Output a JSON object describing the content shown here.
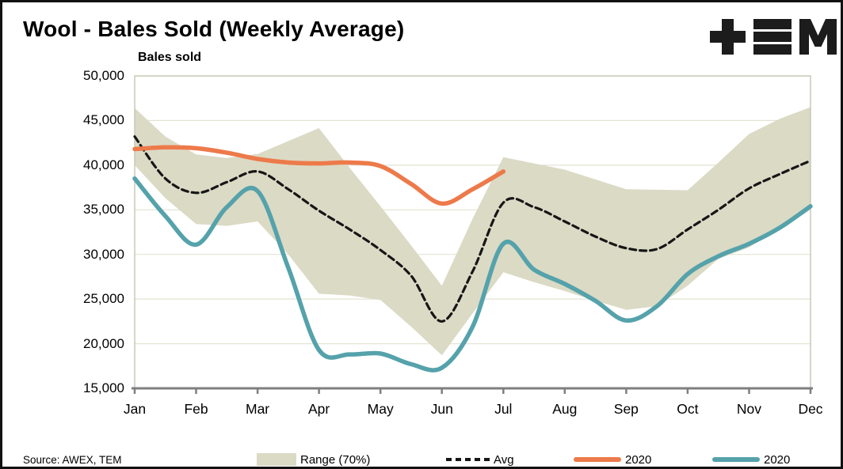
{
  "header": {
    "title": "Wool - Bales Sold (Weekly Average)"
  },
  "logo": {
    "name": "TEM logo",
    "glyph": "+≡M"
  },
  "source_note": "Source: AWEX, TEM",
  "colors": {
    "gridline": "#e3e3d3",
    "plot_border": "#c8c8b8",
    "axis_line": "#7f7f7f",
    "text": "#000000"
  },
  "chart_data": {
    "type": "line",
    "title": "Wool - Bales Sold (Weekly Average)",
    "y_axis_title": "Bales sold",
    "categories": [
      "Jan",
      "Feb",
      "Mar",
      "Apr",
      "May",
      "Jun",
      "Jul",
      "Aug",
      "Sep",
      "Oct",
      "Nov",
      "Dec"
    ],
    "y_ticks": [
      "50,000",
      "45,000",
      "40,000",
      "35,000",
      "30,000",
      "25,000",
      "20,000",
      "15,000"
    ],
    "y_tick_values": [
      50000,
      45000,
      40000,
      35000,
      30000,
      25000,
      20000,
      15000
    ],
    "ylim": [
      15000,
      50000
    ],
    "grid": true,
    "legend_position": "bottom",
    "series": [
      {
        "name": "Range (70%)",
        "type": "band",
        "color": "#dbdac5",
        "x": [
          0,
          0.5,
          1,
          1.5,
          2,
          2.5,
          3,
          3.5,
          4,
          4.5,
          5,
          5.5,
          6,
          6.5,
          7,
          7.5,
          8,
          8.5,
          9,
          9.5,
          10,
          10.5,
          11
        ],
        "upper": [
          46400,
          43200,
          41200,
          40800,
          41250,
          42700,
          44150,
          39700,
          35400,
          31000,
          26500,
          34000,
          40900,
          40200,
          39500,
          38400,
          37300,
          37250,
          37200,
          40300,
          43500,
          45200,
          46500
        ],
        "lower": [
          40000,
          36300,
          33400,
          33200,
          33700,
          30000,
          25600,
          25400,
          24900,
          21900,
          18700,
          23400,
          28000,
          26900,
          25900,
          24800,
          23800,
          24200,
          26500,
          29500,
          30800,
          32900,
          35000
        ]
      },
      {
        "name": "Avg",
        "type": "line",
        "dash": "8 5",
        "width": 3.2,
        "color": "#161616",
        "x": [
          0,
          0.5,
          1,
          1.5,
          2,
          2.5,
          3,
          3.5,
          4,
          4.5,
          5,
          5.5,
          6,
          6.5,
          7,
          7.5,
          8,
          8.5,
          9,
          9.5,
          10,
          10.5,
          11
        ],
        "values": [
          43200,
          38500,
          36900,
          38100,
          39300,
          37300,
          34900,
          32800,
          30500,
          27600,
          22500,
          28100,
          35800,
          35300,
          33700,
          32000,
          30700,
          30600,
          32800,
          35000,
          37400,
          39000,
          40500
        ]
      },
      {
        "name": "2020",
        "type": "line",
        "width": 5.5,
        "color": "#ed7a4a",
        "x": [
          0,
          0.5,
          1,
          1.5,
          2,
          2.5,
          3,
          3.5,
          4,
          4.5,
          5,
          5.5,
          6
        ],
        "values": [
          41800,
          42000,
          41900,
          41400,
          40700,
          40300,
          40200,
          40300,
          39900,
          37900,
          35700,
          37300,
          39300
        ]
      },
      {
        "name": "2020",
        "type": "line",
        "width": 5.5,
        "color": "#55a2ab",
        "x": [
          0,
          0.5,
          1,
          1.5,
          2,
          2.5,
          3,
          3.5,
          4,
          4.5,
          5,
          5.5,
          6,
          6.5,
          7,
          7.5,
          8,
          8.5,
          9,
          9.5,
          10,
          10.5,
          11
        ],
        "values": [
          38500,
          34300,
          31100,
          35300,
          37100,
          28500,
          19300,
          18800,
          18900,
          17700,
          17300,
          21900,
          31200,
          28300,
          26700,
          24800,
          22600,
          24200,
          27800,
          29800,
          31200,
          33000,
          35400
        ]
      }
    ]
  }
}
